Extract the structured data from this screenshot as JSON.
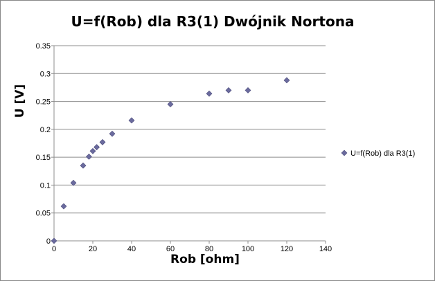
{
  "chart_data": {
    "type": "scatter",
    "title": "U=f(Rob) dla R3(1) Dwójnik Nortona",
    "xlabel": "Rob [ohm]",
    "ylabel": "U [V]",
    "xlim": [
      0,
      140
    ],
    "ylim": [
      0,
      0.35
    ],
    "x_ticks": [
      "0",
      "20",
      "40",
      "60",
      "80",
      "100",
      "120",
      "140"
    ],
    "y_ticks": [
      "0",
      "0.05",
      "0.1",
      "0.15",
      "0.2",
      "0.25",
      "0.3",
      "0.35"
    ],
    "grid": "horizontal",
    "legend_position": "right",
    "marker": "diamond",
    "series": [
      {
        "name": "U=f(Rob) dla R3(1)",
        "color": "#6b6b9e",
        "x": [
          0,
          5,
          10,
          15,
          18,
          20,
          22,
          25,
          30,
          40,
          60,
          80,
          90,
          100,
          120
        ],
        "y": [
          0,
          0.062,
          0.104,
          0.135,
          0.151,
          0.161,
          0.168,
          0.177,
          0.192,
          0.216,
          0.245,
          0.264,
          0.27,
          0.27,
          0.288
        ]
      }
    ]
  }
}
